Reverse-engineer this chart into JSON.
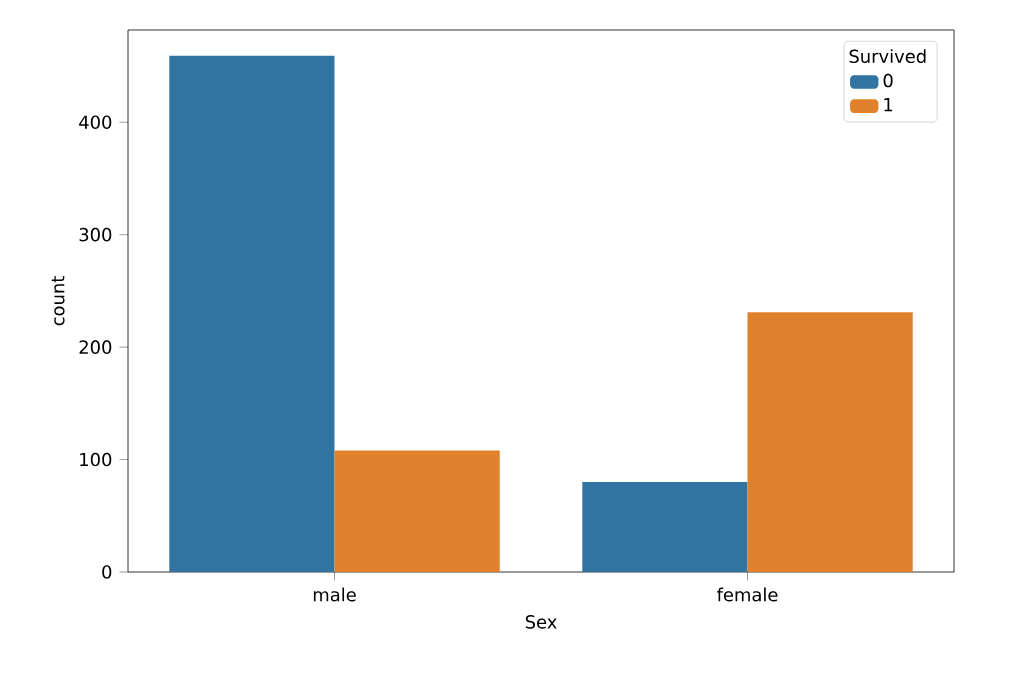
{
  "chart_data": {
    "type": "bar",
    "xlabel": "Sex",
    "ylabel": "count",
    "legend_title": "Survived",
    "categories": [
      "male",
      "female"
    ],
    "series": [
      {
        "name": "0",
        "color": "#3274a1",
        "values": [
          459,
          80
        ]
      },
      {
        "name": "1",
        "color": "#e1812c",
        "values": [
          108,
          231
        ]
      }
    ],
    "ylim": [
      0,
      482
    ],
    "yticks": [
      0,
      100,
      200,
      300,
      400
    ],
    "grid": false,
    "legend": "top right"
  }
}
